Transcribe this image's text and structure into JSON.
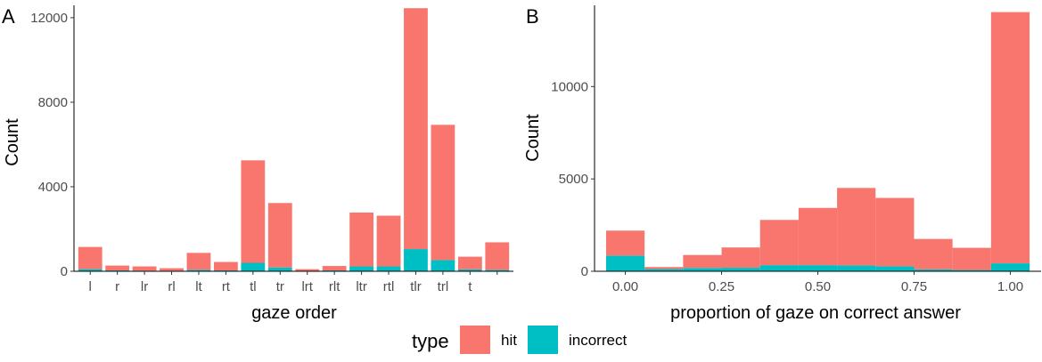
{
  "chart_data": [
    {
      "panel": "A",
      "type": "bar",
      "stacked": true,
      "xlabel": "gaze order",
      "ylabel": "Count",
      "ylim": [
        0,
        12500
      ],
      "yticks": [
        0,
        4000,
        8000,
        12000
      ],
      "tick_labels": [
        "0",
        "4000",
        "8000",
        "12000"
      ],
      "categories": [
        "l",
        "r",
        "lr",
        "rl",
        "lt",
        "rt",
        "tl",
        "tr",
        "lrt",
        "rlt",
        "ltr",
        "rtl",
        "tlr",
        "trl",
        "t",
        ""
      ],
      "series": [
        {
          "name": "hit",
          "color": "#F8766D",
          "values": [
            1050,
            230,
            200,
            120,
            800,
            400,
            4850,
            3050,
            80,
            210,
            2550,
            2400,
            11400,
            6400,
            600,
            1300
          ]
        },
        {
          "name": "incorrect",
          "color": "#00BFC4",
          "values": [
            100,
            40,
            30,
            25,
            70,
            40,
            400,
            180,
            20,
            40,
            230,
            230,
            1050,
            530,
            90,
            70
          ]
        }
      ]
    },
    {
      "panel": "B",
      "type": "bar",
      "stacked": true,
      "xlabel": "proportion of gaze on correct answer",
      "ylabel": "Count",
      "ylim": [
        0,
        14300
      ],
      "xlim": [
        -0.08,
        1.08
      ],
      "yticks": [
        0,
        5000,
        10000
      ],
      "tick_labels": [
        "0",
        "5000",
        "10000"
      ],
      "xticks": [
        0,
        0.25,
        0.5,
        0.75,
        1
      ],
      "xtick_labels": [
        "0.00",
        "0.25",
        "0.50",
        "0.75",
        "1.00"
      ],
      "bin_centers": [
        0,
        0.1,
        0.2,
        0.3,
        0.4,
        0.5,
        0.6,
        0.7,
        0.8,
        0.9,
        1.0
      ],
      "bin_width": 0.1,
      "series": [
        {
          "name": "hit",
          "color": "#F8766D",
          "values": [
            1350,
            110,
            700,
            1100,
            2450,
            3100,
            4200,
            3700,
            1650,
            1200,
            13600
          ]
        },
        {
          "name": "incorrect",
          "color": "#00BFC4",
          "values": [
            850,
            120,
            180,
            190,
            330,
            330,
            310,
            270,
            100,
            70,
            430
          ]
        }
      ]
    }
  ],
  "legend": {
    "title": "type",
    "items": [
      {
        "label": "hit",
        "color": "#F8766D"
      },
      {
        "label": "incorrect",
        "color": "#00BFC4"
      }
    ]
  }
}
